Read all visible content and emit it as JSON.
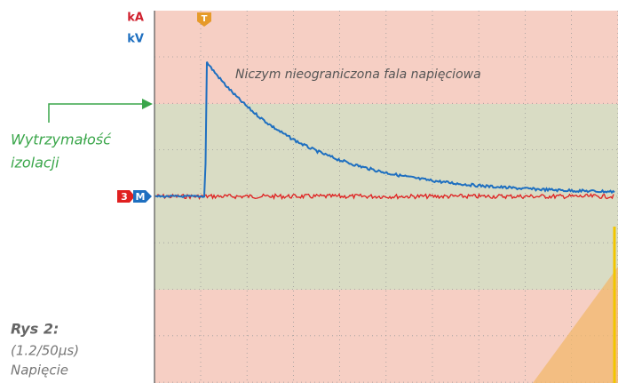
{
  "units": {
    "current": "kA",
    "voltage": "kV"
  },
  "trigger_marker": "T",
  "channel_tags": {
    "channel": "3",
    "math": "M"
  },
  "annotation": "Niczym nieograniczona fala napięciowa",
  "threshold_label": [
    "Wytrzymałość",
    "izolacji"
  ],
  "caption": {
    "title": "Rys 2:",
    "subtitle": "(1.2/50µs)",
    "description": "Napięcie"
  }
}
